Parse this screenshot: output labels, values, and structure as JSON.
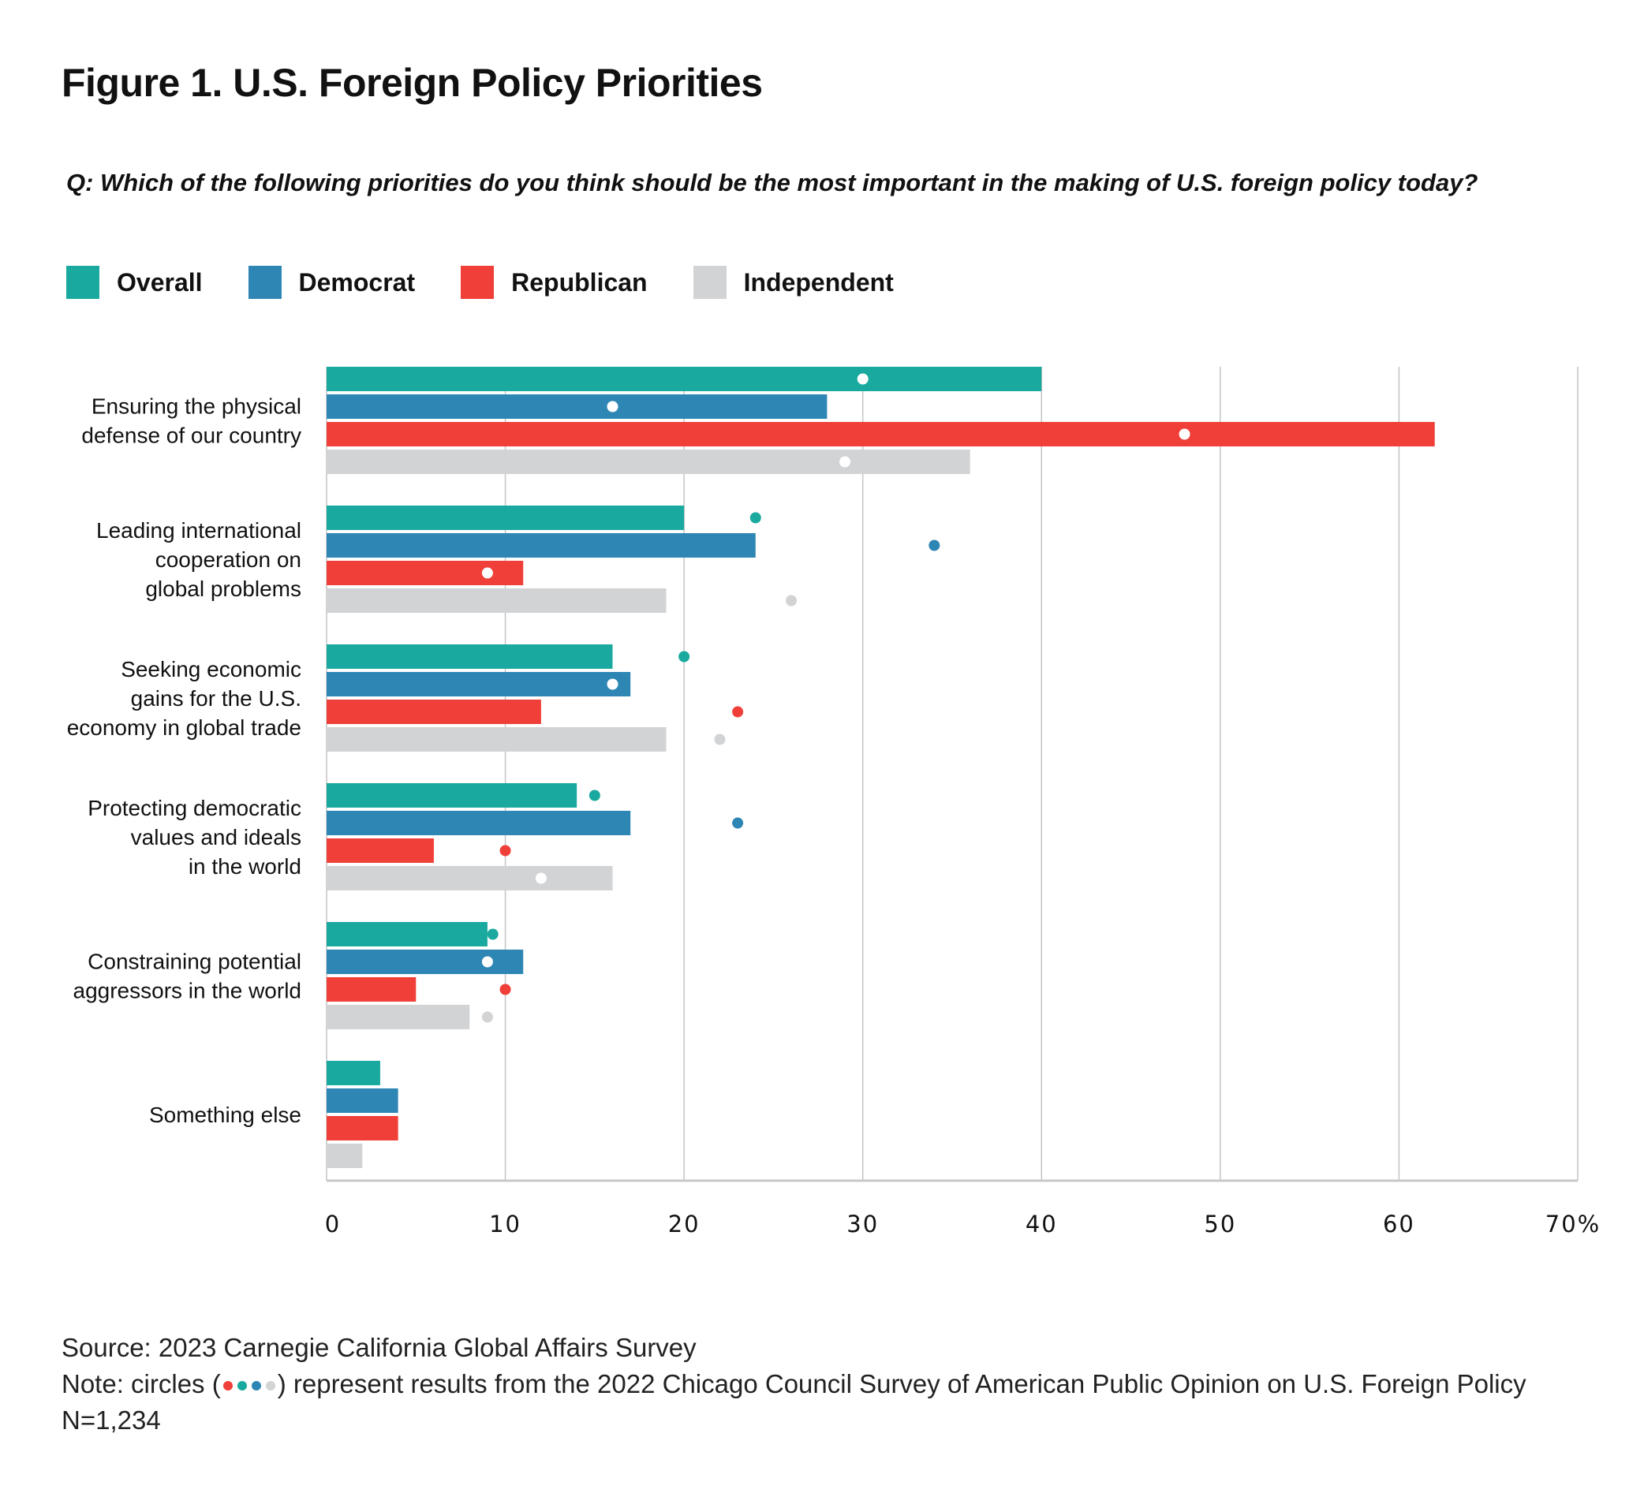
{
  "chart_data": {
    "type": "bar",
    "orientation": "horizontal",
    "title": "Figure 1. U.S. Foreign Policy Priorities",
    "subtitle": "Q: Which of the following priorities do you think should be the most important in the making of U.S. foreign policy today?",
    "categories": [
      [
        "Ensuring the physical",
        "defense of our country"
      ],
      [
        "Leading international",
        "cooperation on",
        "global problems"
      ],
      [
        "Seeking economic",
        "gains for the U.S.",
        "economy in global trade"
      ],
      [
        "Protecting democratic",
        "values and ideals",
        "in the world"
      ],
      [
        "Constraining potential",
        "aggressors in the world"
      ],
      [
        "Something else"
      ]
    ],
    "series": [
      {
        "name": "Overall",
        "color": "#1aa99e",
        "values": [
          40,
          20,
          16,
          14,
          9,
          3
        ],
        "circles_2022": [
          30,
          24,
          20,
          15,
          9.3,
          null
        ]
      },
      {
        "name": "Democrat",
        "color": "#2e86b4",
        "values": [
          28,
          24,
          17,
          17,
          11,
          4
        ],
        "circles_2022": [
          16,
          34,
          16,
          23,
          9,
          null
        ]
      },
      {
        "name": "Republican",
        "color": "#f03f38",
        "values": [
          62,
          11,
          12,
          6,
          5,
          4
        ],
        "circles_2022": [
          48,
          9,
          23,
          10,
          10,
          null
        ]
      },
      {
        "name": "Independent",
        "color": "#d2d3d5",
        "values": [
          36,
          19,
          19,
          16,
          8,
          2
        ],
        "circles_2022": [
          29,
          26,
          22,
          12,
          9,
          null
        ]
      }
    ],
    "xlim": [
      0,
      70
    ],
    "x_ticks": [
      "0",
      "10",
      "20",
      "30",
      "40",
      "50",
      "60",
      "70%"
    ],
    "grid": true,
    "legend": "top-left"
  },
  "footer": {
    "source": "Source: 2023 Carnegie California Global Affairs Survey",
    "note_prefix": "Note: circles (",
    "note_suffix": ") represent results from the 2022 Chicago Council Survey of American Public Opinion on U.S. Foreign Policy",
    "n": "N=1,234"
  }
}
